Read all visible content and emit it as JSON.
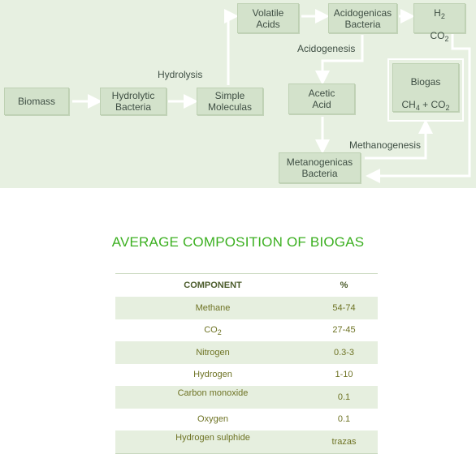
{
  "diagram": {
    "nodes": {
      "biomass": "Biomass",
      "hydrolytic_bacteria": "Hydrolytic\nBacteria",
      "simple_moleculas": "Simple\nMoleculas",
      "volatile_acids": "Volatile\nAcids",
      "acidogenicas_bacteria": "Acidogenicas\nBacteria",
      "h2": "H",
      "h2_sub": "2",
      "co2": "CO",
      "co2_sub": "2",
      "acetic_acid": "Acetic\nAcid",
      "biogas_title": "Biogas",
      "biogas_ch": "CH",
      "biogas_ch_sub": "4",
      "biogas_plus": " + CO",
      "biogas_co2_sub": "2",
      "metanogenicas_bacteria": "Metanogenicas\nBacteria"
    },
    "labels": {
      "hydrolysis": "Hydrolysis",
      "acidogenesis": "Acidogenesis",
      "methanogenesis": "Methanogenesis"
    },
    "colors": {
      "background": "#e7f0e1",
      "box": "#d3e2cb",
      "arrow": "#ffffff",
      "text": "#3f4f44"
    }
  },
  "composition": {
    "title": "AVERAGE COMPOSITION OF BIOGAS",
    "title_color": "#3cb021",
    "headers": {
      "component": "COMPONENT",
      "percent": "%"
    },
    "rows": [
      {
        "component": "Methane",
        "value": "54-74"
      },
      {
        "component": "CO",
        "sub": "2",
        "value": "27-45"
      },
      {
        "component": "Nitrogen",
        "value": "0.3-3"
      },
      {
        "component": "Hydrogen",
        "value": "1-10"
      },
      {
        "component": "Carbon monoxide",
        "value": "0.1"
      },
      {
        "component": "Oxygen",
        "value": "0.1"
      },
      {
        "component": "Hydrogen sulphide",
        "value": "trazas"
      }
    ]
  }
}
